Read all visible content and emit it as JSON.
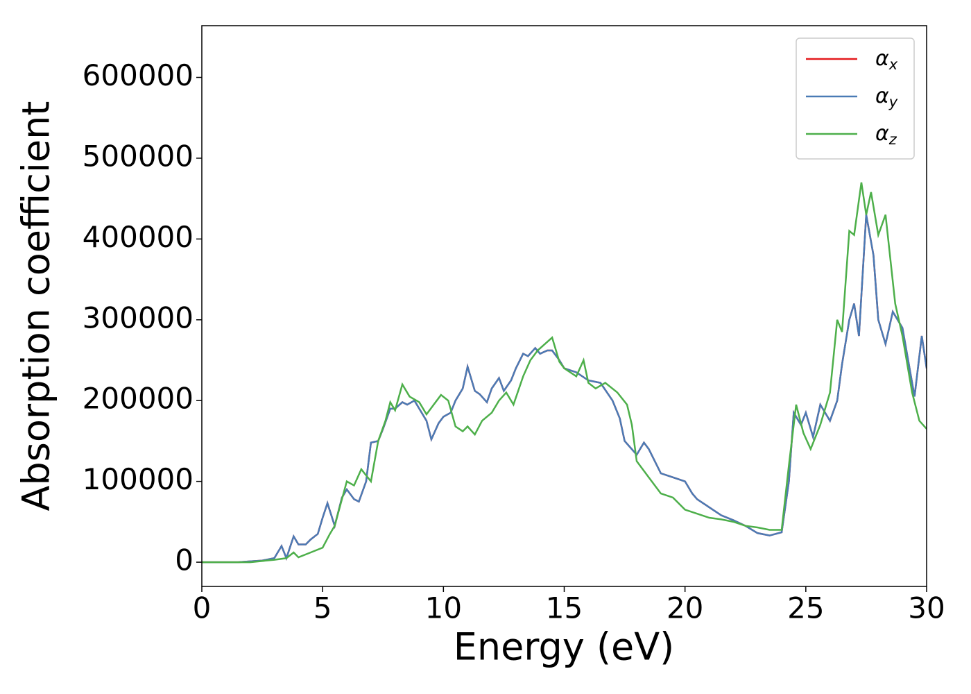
{
  "chart_data": {
    "type": "line",
    "xlabel": "Energy (eV)",
    "ylabel": "Absorption coefficient",
    "xlim": [
      0,
      30
    ],
    "ylim": [
      -30000,
      664000
    ],
    "xticks": [
      0,
      5,
      10,
      15,
      20,
      25,
      30
    ],
    "yticks": [
      0,
      100000,
      200000,
      300000,
      400000,
      500000,
      600000
    ],
    "legend": "upper right",
    "series": [
      {
        "name": "αx",
        "color": "#e41a1c",
        "x": [
          0,
          0.5,
          1,
          1.5,
          2,
          2.5,
          3,
          3.3,
          3.5,
          3.8,
          4,
          4.3,
          4.5,
          4.8,
          5,
          5.2,
          5.5,
          5.8,
          6,
          6.3,
          6.5,
          6.8,
          7,
          7.3,
          7.5,
          7.8,
          8,
          8.3,
          8.5,
          8.8,
          9,
          9.3,
          9.5,
          9.8,
          10,
          10.3,
          10.5,
          10.8,
          11,
          11.3,
          11.5,
          11.8,
          12,
          12.3,
          12.5,
          12.8,
          13,
          13.3,
          13.5,
          13.8,
          14,
          14.3,
          14.5,
          14.8,
          15,
          15.5,
          16,
          16.5,
          17,
          17.3,
          17.5,
          18,
          18.3,
          18.5,
          19,
          19.5,
          19.8,
          20,
          20.3,
          20.5,
          21,
          21.5,
          22,
          22.5,
          23,
          23.5,
          24,
          24.3,
          24.5,
          24.8,
          25,
          25.3,
          25.6,
          26,
          26.3,
          26.5,
          26.8,
          27,
          27.2,
          27.5,
          27.8,
          28,
          28.3,
          28.6,
          29,
          29.5,
          29.8,
          30
        ],
        "values": [
          0,
          0,
          0,
          0,
          1000,
          2000,
          5000,
          20000,
          5000,
          32000,
          22000,
          22000,
          28000,
          35000,
          55000,
          73000,
          45000,
          80000,
          90000,
          78000,
          75000,
          100000,
          148000,
          150000,
          165000,
          190000,
          190000,
          198000,
          195000,
          200000,
          190000,
          175000,
          152000,
          172000,
          180000,
          185000,
          200000,
          215000,
          242000,
          212000,
          208000,
          198000,
          215000,
          228000,
          212000,
          225000,
          240000,
          258000,
          255000,
          265000,
          258000,
          262000,
          262000,
          250000,
          240000,
          235000,
          225000,
          222000,
          200000,
          178000,
          150000,
          133000,
          148000,
          140000,
          110000,
          105000,
          102000,
          100000,
          85000,
          78000,
          68000,
          58000,
          52000,
          45000,
          36000,
          33000,
          37000,
          100000,
          185000,
          170000,
          185000,
          155000,
          195000,
          175000,
          200000,
          245000,
          300000,
          320000,
          280000,
          430000,
          380000,
          300000,
          270000,
          310000,
          290000,
          205000,
          280000,
          240000
        ]
      },
      {
        "name": "αy",
        "color": "#4a7bb5",
        "x": [
          0,
          0.5,
          1,
          1.5,
          2,
          2.5,
          3,
          3.3,
          3.5,
          3.8,
          4,
          4.3,
          4.5,
          4.8,
          5,
          5.2,
          5.5,
          5.8,
          6,
          6.3,
          6.5,
          6.8,
          7,
          7.3,
          7.5,
          7.8,
          8,
          8.3,
          8.5,
          8.8,
          9,
          9.3,
          9.5,
          9.8,
          10,
          10.3,
          10.5,
          10.8,
          11,
          11.3,
          11.5,
          11.8,
          12,
          12.3,
          12.5,
          12.8,
          13,
          13.3,
          13.5,
          13.8,
          14,
          14.3,
          14.5,
          14.8,
          15,
          15.5,
          16,
          16.5,
          17,
          17.3,
          17.5,
          18,
          18.3,
          18.5,
          19,
          19.5,
          19.8,
          20,
          20.3,
          20.5,
          21,
          21.5,
          22,
          22.5,
          23,
          23.5,
          24,
          24.3,
          24.5,
          24.8,
          25,
          25.3,
          25.6,
          26,
          26.3,
          26.5,
          26.8,
          27,
          27.2,
          27.5,
          27.8,
          28,
          28.3,
          28.6,
          29,
          29.5,
          29.8,
          30
        ],
        "values": [
          0,
          0,
          0,
          0,
          1000,
          2000,
          5000,
          20000,
          5000,
          32000,
          22000,
          22000,
          28000,
          35000,
          55000,
          73000,
          45000,
          80000,
          90000,
          78000,
          75000,
          100000,
          148000,
          150000,
          165000,
          190000,
          190000,
          198000,
          195000,
          200000,
          190000,
          175000,
          152000,
          172000,
          180000,
          185000,
          200000,
          215000,
          242000,
          212000,
          208000,
          198000,
          215000,
          228000,
          212000,
          225000,
          240000,
          258000,
          255000,
          265000,
          258000,
          262000,
          262000,
          250000,
          240000,
          235000,
          225000,
          222000,
          200000,
          178000,
          150000,
          133000,
          148000,
          140000,
          110000,
          105000,
          102000,
          100000,
          85000,
          78000,
          68000,
          58000,
          52000,
          45000,
          36000,
          33000,
          37000,
          100000,
          185000,
          170000,
          185000,
          155000,
          195000,
          175000,
          200000,
          245000,
          300000,
          320000,
          280000,
          430000,
          380000,
          300000,
          270000,
          310000,
          290000,
          205000,
          280000,
          240000
        ]
      },
      {
        "name": "αz",
        "color": "#4daf4a",
        "x": [
          0,
          0.5,
          1,
          1.5,
          2,
          3,
          3.5,
          3.8,
          4,
          4.5,
          5,
          5.3,
          5.5,
          6,
          6.3,
          6.6,
          7,
          7.3,
          7.6,
          7.8,
          8,
          8.3,
          8.6,
          9,
          9.3,
          9.6,
          9.9,
          10.2,
          10.5,
          10.8,
          11,
          11.3,
          11.6,
          12,
          12.3,
          12.6,
          12.9,
          13.3,
          13.6,
          13.9,
          14.2,
          14.5,
          14.8,
          15,
          15.5,
          15.8,
          16,
          16.3,
          16.7,
          17.2,
          17.6,
          17.8,
          18,
          18.5,
          19,
          19.5,
          20,
          20.5,
          21,
          21.5,
          22,
          22.5,
          23,
          23.5,
          24,
          24.3,
          24.6,
          24.9,
          25.2,
          25.6,
          26,
          26.3,
          26.5,
          26.8,
          27,
          27.3,
          27.5,
          27.7,
          28,
          28.3,
          28.7,
          29,
          29.4,
          29.7,
          30
        ],
        "values": [
          0,
          0,
          0,
          0,
          0,
          3000,
          5000,
          12000,
          6000,
          12000,
          18000,
          35000,
          45000,
          100000,
          95000,
          115000,
          100000,
          150000,
          175000,
          198000,
          188000,
          220000,
          205000,
          198000,
          183000,
          195000,
          207000,
          200000,
          168000,
          162000,
          168000,
          158000,
          175000,
          185000,
          200000,
          210000,
          195000,
          230000,
          250000,
          262000,
          270000,
          278000,
          248000,
          240000,
          230000,
          250000,
          222000,
          215000,
          222000,
          210000,
          195000,
          170000,
          125000,
          105000,
          85000,
          80000,
          65000,
          60000,
          55000,
          53000,
          50000,
          45000,
          43000,
          40000,
          40000,
          120000,
          195000,
          160000,
          140000,
          170000,
          210000,
          300000,
          285000,
          410000,
          405000,
          470000,
          430000,
          458000,
          405000,
          430000,
          320000,
          280000,
          210000,
          175000,
          165000
        ]
      }
    ]
  }
}
